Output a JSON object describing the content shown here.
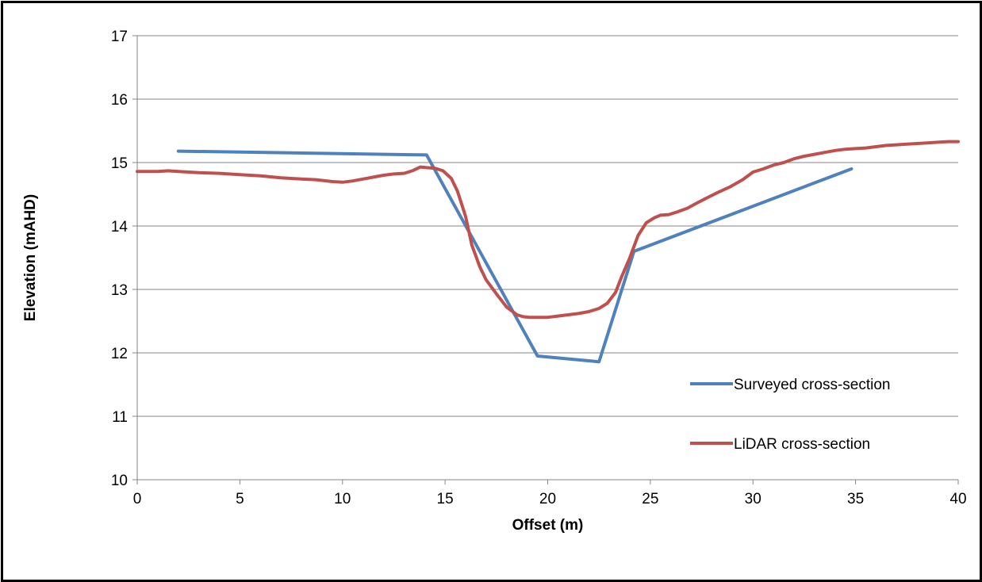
{
  "chart_data": {
    "type": "line",
    "title": "",
    "xlabel": "Offset (m)",
    "ylabel": "Elevation (mAHD)",
    "xlim": [
      0,
      40
    ],
    "ylim": [
      10,
      17
    ],
    "xticks": [
      0,
      5,
      10,
      15,
      20,
      25,
      30,
      35,
      40
    ],
    "yticks": [
      10,
      11,
      12,
      13,
      14,
      15,
      16,
      17
    ],
    "grid": "horizontal",
    "legend_position": "bottom-right",
    "series": [
      {
        "name": "Surveyed cross-section",
        "color": "#4f81bd",
        "x": [
          2.0,
          14.1,
          19.5,
          22.5,
          24.2,
          34.8
        ],
        "y": [
          15.18,
          15.12,
          11.95,
          11.86,
          13.6,
          14.9
        ]
      },
      {
        "name": "LiDAR cross-section",
        "color": "#c0504d",
        "x": [
          0,
          0.5,
          1.0,
          1.5,
          2.0,
          3.0,
          4.0,
          5.0,
          6.0,
          7.0,
          8.0,
          8.7,
          9.5,
          10.0,
          10.5,
          11.0,
          11.5,
          12.0,
          12.5,
          13.0,
          13.4,
          13.8,
          14.1,
          14.5,
          14.9,
          15.3,
          15.6,
          16.0,
          16.3,
          16.7,
          17.0,
          17.5,
          18.0,
          18.5,
          18.8,
          19.1,
          19.5,
          20.0,
          20.5,
          21.0,
          21.5,
          22.0,
          22.5,
          22.9,
          23.3,
          23.6,
          24.0,
          24.4,
          24.8,
          25.2,
          25.5,
          25.9,
          26.3,
          26.8,
          27.2,
          27.8,
          28.3,
          28.9,
          29.5,
          30.0,
          30.5,
          31.0,
          31.5,
          32.0,
          32.5,
          33.0,
          33.5,
          34.0,
          34.5,
          35.0,
          35.5,
          36.0,
          36.5,
          37.0,
          37.5,
          38.0,
          38.5,
          39.0,
          39.5,
          40.0
        ],
        "y": [
          14.86,
          14.86,
          14.86,
          14.87,
          14.86,
          14.84,
          14.83,
          14.81,
          14.79,
          14.76,
          14.74,
          14.73,
          14.7,
          14.69,
          14.71,
          14.74,
          14.77,
          14.8,
          14.82,
          14.83,
          14.87,
          14.93,
          14.92,
          14.91,
          14.87,
          14.75,
          14.55,
          14.15,
          13.7,
          13.35,
          13.15,
          12.93,
          12.72,
          12.6,
          12.57,
          12.56,
          12.56,
          12.56,
          12.58,
          12.6,
          12.62,
          12.65,
          12.7,
          12.78,
          12.95,
          13.2,
          13.5,
          13.85,
          14.05,
          14.13,
          14.17,
          14.18,
          14.22,
          14.28,
          14.35,
          14.45,
          14.53,
          14.62,
          14.73,
          14.85,
          14.9,
          14.96,
          15.0,
          15.06,
          15.1,
          15.13,
          15.16,
          15.19,
          15.21,
          15.22,
          15.23,
          15.25,
          15.27,
          15.28,
          15.29,
          15.3,
          15.31,
          15.32,
          15.33,
          15.33
        ]
      }
    ]
  }
}
